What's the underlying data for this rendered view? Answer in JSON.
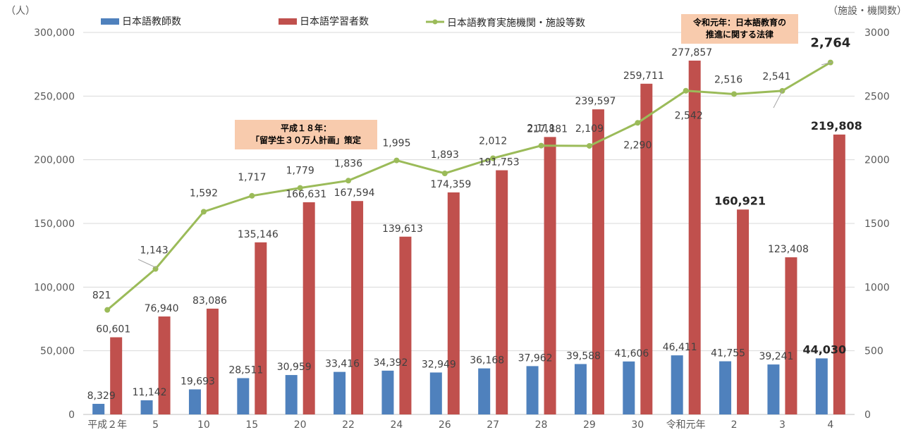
{
  "chart_data": {
    "type": "bar",
    "left_axis_unit": "（人）",
    "right_axis_unit": "（施設・機関数）",
    "categories": [
      "平成２年",
      "5",
      "10",
      "15",
      "20",
      "22",
      "24",
      "26",
      "27",
      "28",
      "29",
      "30",
      "令和元年",
      "2",
      "3",
      "4"
    ],
    "series": [
      {
        "name": "日本語教師数",
        "type": "bar",
        "axis": "left",
        "color": "#4f81bd",
        "values": [
          8329,
          11142,
          19693,
          28511,
          30959,
          33416,
          34392,
          32949,
          36168,
          37962,
          39588,
          41606,
          46411,
          41755,
          39241,
          44030
        ],
        "labels": [
          "8,329",
          "11,142",
          "19,693",
          "28,511",
          "30,959",
          "33,416",
          "34,392",
          "32,949",
          "36,168",
          "37,962",
          "39,588",
          "41,606",
          "46,411",
          "41,755",
          "39,241",
          "44,030"
        ]
      },
      {
        "name": "日本語学習者数",
        "type": "bar",
        "axis": "left",
        "color": "#c0504d",
        "values": [
          60601,
          76940,
          83086,
          135146,
          166631,
          167594,
          139613,
          174359,
          191753,
          217881,
          239597,
          259711,
          277857,
          160921,
          123408,
          219808
        ],
        "labels": [
          "60,601",
          "76,940",
          "83,086",
          "135,146",
          "166,631",
          "167,594",
          "139,613",
          "174,359",
          "191,753",
          "217,881",
          "239,597",
          "259,711",
          "277,857",
          "160,921",
          "123,408",
          "219,808"
        ]
      },
      {
        "name": "日本語教育実施機関・施設等数",
        "type": "line",
        "axis": "right",
        "color": "#9bbb59",
        "values": [
          821,
          1143,
          1592,
          1717,
          1779,
          1836,
          1995,
          1893,
          2012,
          2111,
          2109,
          2290,
          2542,
          2516,
          2541,
          2764
        ],
        "labels": [
          "821",
          "1,143",
          "1,592",
          "1,717",
          "1,779",
          "1,836",
          "1,995",
          "1,893",
          "2,012",
          "2,111",
          "2,109",
          "2,290",
          "2,542",
          "2,516",
          "2,541",
          "2,764"
        ]
      }
    ],
    "ylim_left": [
      0,
      300000
    ],
    "yticks_left": [
      "0",
      "50,000",
      "100,000",
      "150,000",
      "200,000",
      "250,000",
      "300,000"
    ],
    "ylim_right": [
      0,
      3000
    ],
    "yticks_right": [
      "0",
      "500",
      "1000",
      "1500",
      "2000",
      "2500",
      "3000"
    ],
    "legend_placement": "top",
    "grid": true,
    "annotations": [
      {
        "lines": [
          "平成１８年：",
          "「留学生３０万人計画」策定"
        ],
        "color": "#f8cbad"
      },
      {
        "lines": [
          "令和元年：日本語教育の",
          "推進に関する法律"
        ],
        "color": "#f8cbad"
      }
    ]
  }
}
